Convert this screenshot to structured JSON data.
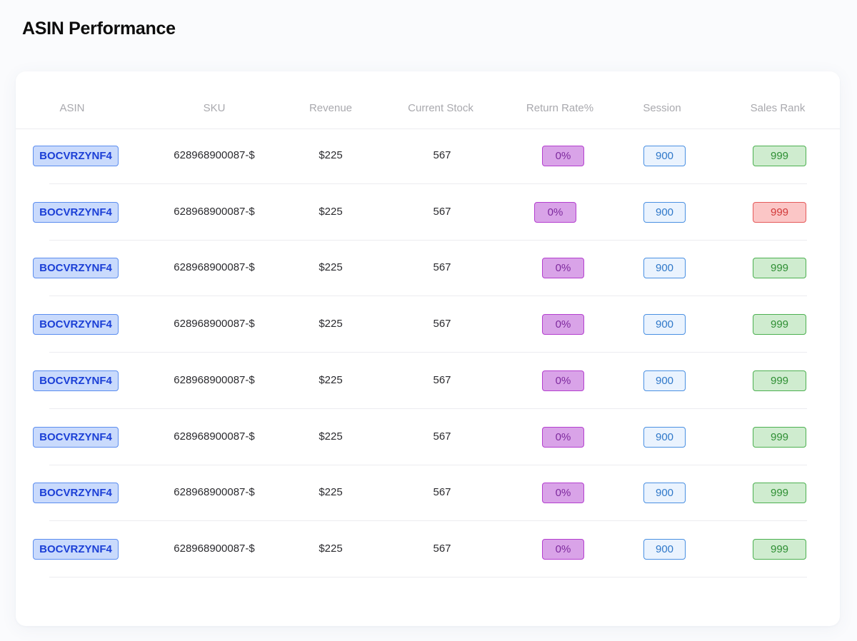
{
  "page": {
    "title": "ASIN Performance"
  },
  "table": {
    "columns": [
      "ASIN",
      "SKU",
      "Revenue",
      "Current Stock",
      "Return Rate%",
      "Session",
      "Sales Rank"
    ],
    "rows": [
      {
        "asin": "BOCVRZYNF4",
        "sku": "628968900087-$",
        "revenue": "$225",
        "stock": "567",
        "return_rate": "0%",
        "session": "900",
        "sales_rank": "999",
        "rank_status": "good"
      },
      {
        "asin": "BOCVRZYNF4",
        "sku": "628968900087-$",
        "revenue": "$225",
        "stock": "567",
        "return_rate": "0%",
        "session": "900",
        "sales_rank": "999",
        "rank_status": "bad"
      },
      {
        "asin": "BOCVRZYNF4",
        "sku": "628968900087-$",
        "revenue": "$225",
        "stock": "567",
        "return_rate": "0%",
        "session": "900",
        "sales_rank": "999",
        "rank_status": "good"
      },
      {
        "asin": "BOCVRZYNF4",
        "sku": "628968900087-$",
        "revenue": "$225",
        "stock": "567",
        "return_rate": "0%",
        "session": "900",
        "sales_rank": "999",
        "rank_status": "good"
      },
      {
        "asin": "BOCVRZYNF4",
        "sku": "628968900087-$",
        "revenue": "$225",
        "stock": "567",
        "return_rate": "0%",
        "session": "900",
        "sales_rank": "999",
        "rank_status": "good"
      },
      {
        "asin": "BOCVRZYNF4",
        "sku": "628968900087-$",
        "revenue": "$225",
        "stock": "567",
        "return_rate": "0%",
        "session": "900",
        "sales_rank": "999",
        "rank_status": "good"
      },
      {
        "asin": "BOCVRZYNF4",
        "sku": "628968900087-$",
        "revenue": "$225",
        "stock": "567",
        "return_rate": "0%",
        "session": "900",
        "sales_rank": "999",
        "rank_status": "good"
      },
      {
        "asin": "BOCVRZYNF4",
        "sku": "628968900087-$",
        "revenue": "$225",
        "stock": "567",
        "return_rate": "0%",
        "session": "900",
        "sales_rank": "999",
        "rank_status": "good"
      }
    ]
  },
  "colors": {
    "asin_badge": "#1b3fd6",
    "return_badge": "#7e2a9e",
    "session_badge": "#2f78c9",
    "rank_good": "#2f8f34",
    "rank_bad": "#d23a3a"
  }
}
